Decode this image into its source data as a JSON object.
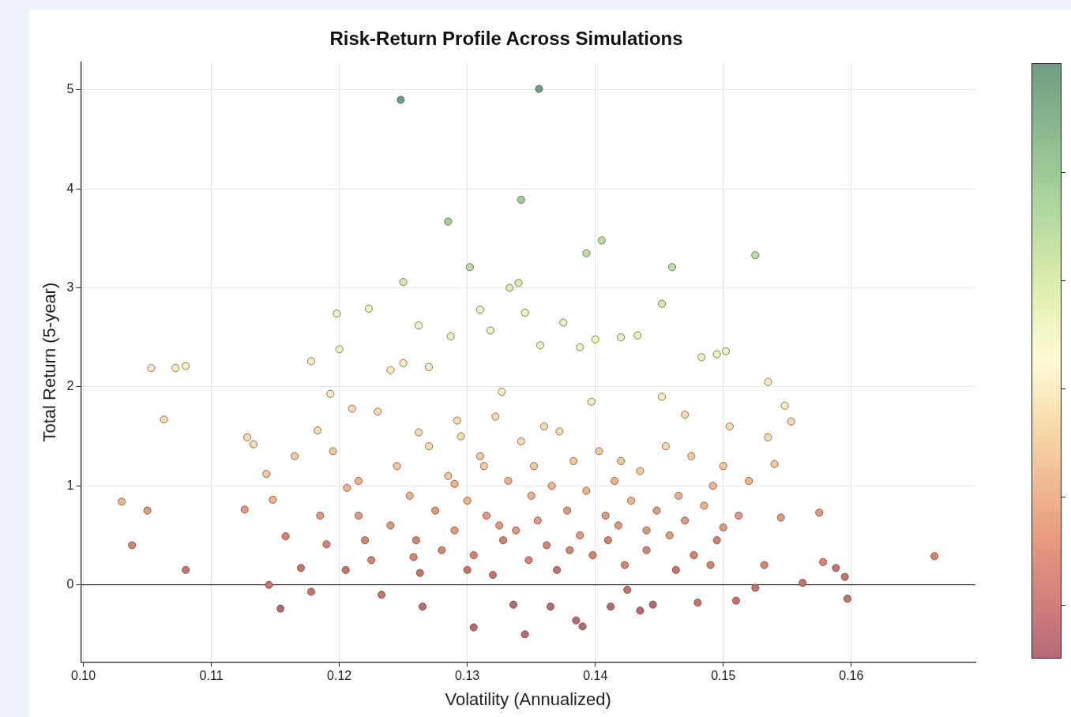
{
  "chart_data": {
    "type": "scatter",
    "title": "Risk-Return Profile Across Simulations",
    "xlabel": "Volatility (Annualized)",
    "ylabel": "Total Return (5-year)",
    "xlim": [
      0.0998,
      0.1697
    ],
    "ylim": [
      -0.78,
      5.28
    ],
    "xticks": [
      {
        "value": 0.1,
        "label": "0.10"
      },
      {
        "value": 0.11,
        "label": "0.11"
      },
      {
        "value": 0.12,
        "label": "0.12"
      },
      {
        "value": 0.13,
        "label": "0.13"
      },
      {
        "value": 0.14,
        "label": "0.14"
      },
      {
        "value": 0.15,
        "label": "0.15"
      },
      {
        "value": 0.16,
        "label": "0.16"
      }
    ],
    "yticks": [
      0,
      1,
      2,
      3,
      4,
      5
    ],
    "grid": true,
    "marker": "circle",
    "ref_lines": [
      {
        "axis": "y",
        "value": 0,
        "color": "#000000"
      }
    ],
    "series": [
      {
        "type": "scatter",
        "x": [
          0.103,
          0.1038,
          0.105,
          0.1053,
          0.1063,
          0.1072,
          0.108,
          0.108,
          0.1126,
          0.1128,
          0.1133,
          0.1143,
          0.1145,
          0.1148,
          0.1154,
          0.1158,
          0.1165,
          0.117,
          0.1178,
          0.1178,
          0.1183,
          0.119,
          0.1193,
          0.1198,
          0.12,
          0.1206,
          0.121,
          0.1215,
          0.1223,
          0.1225,
          0.123,
          0.1233,
          0.124,
          0.1248,
          0.125,
          0.125,
          0.1258,
          0.1262,
          0.1263,
          0.1265,
          0.1262,
          0.127,
          0.1285,
          0.1287,
          0.129,
          0.1292,
          0.13,
          0.1302,
          0.1305,
          0.131,
          0.1313,
          0.1318,
          0.1325,
          0.1327,
          0.1333,
          0.1336,
          0.134,
          0.1342,
          0.1345,
          0.1345,
          0.135,
          0.1356,
          0.1357,
          0.136,
          0.1365,
          0.1375,
          0.138,
          0.1385,
          0.1388,
          0.139,
          0.1393,
          0.1397,
          0.14,
          0.1405,
          0.1408,
          0.1412,
          0.142,
          0.142,
          0.1425,
          0.1433,
          0.1435,
          0.144,
          0.1445,
          0.1452,
          0.1455,
          0.146,
          0.1465,
          0.147,
          0.1477,
          0.148,
          0.1483,
          0.149,
          0.1492,
          0.1495,
          0.15,
          0.1502,
          0.1505,
          0.151,
          0.1512,
          0.152,
          0.1525,
          0.1525,
          0.1532,
          0.1535,
          0.1535,
          0.154,
          0.1545,
          0.1548,
          0.1553,
          0.1562,
          0.1575,
          0.1578,
          0.1588,
          0.1595,
          0.1597,
          0.1665,
          0.124,
          0.1245,
          0.1255,
          0.126,
          0.127,
          0.1275,
          0.128,
          0.1285,
          0.129,
          0.1295,
          0.13,
          0.1305,
          0.131,
          0.1315,
          0.132,
          0.1322,
          0.1328,
          0.1332,
          0.1338,
          0.1342,
          0.1348,
          0.1352,
          0.1355,
          0.1362,
          0.1366,
          0.137,
          0.1372,
          0.1378,
          0.1383,
          0.1388,
          0.1393,
          0.1398,
          0.1403,
          0.141,
          0.1415,
          0.1418,
          0.1423,
          0.1428,
          0.1435,
          0.144,
          0.1448,
          0.1452,
          0.1458,
          0.1463,
          0.147,
          0.1475,
          0.1485,
          0.1495,
          0.15,
          0.1215,
          0.122,
          0.1205,
          0.1195,
          0.1185
        ],
        "values": [
          0.84,
          0.4,
          0.75,
          2.19,
          1.67,
          2.19,
          2.21,
          0.15,
          0.76,
          1.49,
          1.42,
          1.12,
          0,
          0.86,
          -0.24,
          0.49,
          1.3,
          0.17,
          2.26,
          -0.07,
          1.56,
          0.41,
          1.93,
          2.74,
          2.38,
          0.98,
          1.78,
          0.7,
          2.79,
          0.25,
          1.75,
          -0.1,
          2.17,
          4.9,
          3.06,
          2.24,
          0.28,
          1.54,
          0.12,
          -0.22,
          2.62,
          2.2,
          3.67,
          2.51,
          1.02,
          1.66,
          0.15,
          3.21,
          -0.43,
          2.78,
          1.2,
          2.57,
          0.6,
          1.95,
          3,
          -0.2,
          3.05,
          3.89,
          -0.5,
          2.75,
          0.9,
          5.01,
          2.42,
          1.6,
          -0.22,
          2.65,
          0.35,
          -0.36,
          2.4,
          -0.42,
          3.35,
          1.85,
          2.48,
          3.48,
          0.7,
          -0.22,
          2.5,
          1.25,
          -0.05,
          2.52,
          -0.26,
          0.55,
          -0.2,
          2.84,
          1.4,
          3.21,
          0.9,
          1.72,
          0.3,
          -0.18,
          2.3,
          0.2,
          1,
          2.33,
          0.58,
          2.36,
          1.6,
          -0.16,
          0.7,
          1.05,
          3.33,
          -0.03,
          0.2,
          2.05,
          1.49,
          1.22,
          0.68,
          1.81,
          1.65,
          0.02,
          0.73,
          0.23,
          0.17,
          0.08,
          -0.14,
          0.29,
          0.6,
          1.2,
          0.9,
          0.45,
          1.4,
          0.75,
          0.35,
          1.1,
          0.55,
          1.5,
          0.85,
          0.3,
          1.3,
          0.7,
          0.1,
          1.7,
          0.45,
          1.05,
          0.55,
          1.45,
          0.25,
          1.2,
          0.65,
          0.4,
          1,
          0.15,
          1.55,
          0.75,
          1.25,
          0.5,
          0.95,
          0.3,
          1.35,
          0.45,
          1.05,
          0.6,
          0.2,
          0.85,
          1.15,
          0.35,
          0.75,
          1.9,
          0.5,
          0.15,
          0.65,
          1.3,
          0.8,
          0.45,
          1.2,
          1.05,
          0.45,
          0.15,
          1.35,
          0.7
        ],
        "colors": [
          "#eeb38c",
          "#d6836f",
          "#e29a7e",
          "#faecbc",
          "#f6dcad",
          "#faecbc",
          "#faecbc",
          "#c8736a",
          "#e29a7e",
          "#f6dcad",
          "#f6dcad",
          "#f3c99c",
          "#c8736a",
          "#eeb38c",
          "#b86a72",
          "#d6836f",
          "#f3c99c",
          "#c8736a",
          "#faecbc",
          "#c8736a",
          "#f6dcad",
          "#d6836f",
          "#faecbc",
          "#eef3bb",
          "#eef3bb",
          "#eeb38c",
          "#f6dcad",
          "#e29a7e",
          "#eef3bb",
          "#d6836f",
          "#f6dcad",
          "#c8736a",
          "#faecbc",
          "#6f9e85",
          "#d8ebab",
          "#faecbc",
          "#d6836f",
          "#f6dcad",
          "#c8736a",
          "#b86a72",
          "#eef3bb",
          "#faecbc",
          "#a0cf98",
          "#eef3bb",
          "#eeb38c",
          "#f6dcad",
          "#c8736a",
          "#bedfa0",
          "#b86a72",
          "#eef3bb",
          "#f3c99c",
          "#eef3bb",
          "#e29a7e",
          "#faecbc",
          "#d8ebab",
          "#b86a72",
          "#d8ebab",
          "#a0cf98",
          "#b86a72",
          "#eef3bb",
          "#eeb38c",
          "#6f9e85",
          "#eef3bb",
          "#f6dcad",
          "#b86a72",
          "#eef3bb",
          "#d6836f",
          "#b86a72",
          "#eef3bb",
          "#b86a72",
          "#bedfa0",
          "#faecbc",
          "#eef3bb",
          "#bedfa0",
          "#e29a7e",
          "#b86a72",
          "#eef3bb",
          "#f3c99c",
          "#c8736a",
          "#eef3bb",
          "#b86a72",
          "#e29a7e",
          "#b86a72",
          "#d8ebab",
          "#f6dcad",
          "#bedfa0",
          "#eeb38c",
          "#f6dcad",
          "#d6836f",
          "#c8736a",
          "#eef3bb",
          "#d6836f",
          "#eeb38c",
          "#eef3bb",
          "#e29a7e",
          "#eef3bb",
          "#f6dcad",
          "#c8736a",
          "#e29a7e",
          "#eeb38c",
          "#bedfa0",
          "#c8736a",
          "#d6836f",
          "#faecbc",
          "#f6dcad",
          "#f3c99c",
          "#e29a7e",
          "#faecbc",
          "#f6dcad",
          "#c8736a",
          "#e29a7e",
          "#d6836f",
          "#c8736a",
          "#c8736a",
          "#c8736a",
          "#d6836f",
          "#e29a7e",
          "#f3c99c",
          "#eeb38c",
          "#d6836f",
          "#f6dcad",
          "#e29a7e",
          "#d6836f",
          "#f3c99c",
          "#e29a7e",
          "#f6dcad",
          "#eeb38c",
          "#d6836f",
          "#f3c99c",
          "#e29a7e",
          "#c8736a",
          "#f6dcad",
          "#d6836f",
          "#eeb38c",
          "#e29a7e",
          "#f6dcad",
          "#d6836f",
          "#f3c99c",
          "#e29a7e",
          "#d6836f",
          "#eeb38c",
          "#c8736a",
          "#f6dcad",
          "#e29a7e",
          "#f3c99c",
          "#e29a7e",
          "#eeb38c",
          "#d6836f",
          "#f3c99c",
          "#d6836f",
          "#eeb38c",
          "#e29a7e",
          "#d6836f",
          "#eeb38c",
          "#f3c99c",
          "#d6836f",
          "#e29a7e",
          "#faecbc",
          "#e29a7e",
          "#c8736a",
          "#e29a7e",
          "#f3c99c",
          "#eeb38c",
          "#d6836f",
          "#f3c99c",
          "#eeb38c",
          "#d6836f",
          "#c8736a",
          "#f3c99c",
          "#e29a7e"
        ]
      }
    ]
  }
}
